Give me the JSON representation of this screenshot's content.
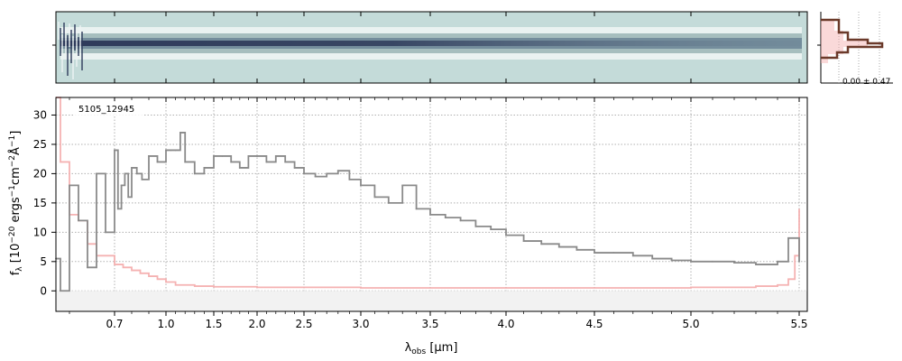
{
  "chart_data": [
    {
      "type": "heatmap",
      "panel": "2d-spectrum",
      "colormap": [
        "#c4dbd9",
        "#eef4f3",
        "#9fb8b8",
        "#6f8798",
        "#2e3a5a"
      ],
      "title": "",
      "xlabel": "",
      "ylabel": ""
    },
    {
      "type": "line",
      "panel": "spatial-profile",
      "annotation": "0.00 ± 0.47",
      "series": [
        {
          "role": "profile",
          "color": "#6b3a2a"
        },
        {
          "role": "model",
          "color": "#f4aaaa"
        }
      ]
    },
    {
      "type": "line",
      "panel": "1d-spectrum",
      "label": "5105_12945",
      "xlabel": "λobs [μm]",
      "ylabel": "fλ [10−20 ergs−1cm−2Å−1]",
      "x_scale": "nonlinear (spectral pixel)",
      "xlim": [
        0.57,
        5.53
      ],
      "ylim": [
        -3.5,
        33
      ],
      "xticks": [
        "0.7",
        "1.0",
        "1.5",
        "2.0",
        "2.5",
        "3.0",
        "3.5",
        "4.0",
        "4.5",
        "5.0",
        "5.5"
      ],
      "yticks": [
        "0",
        "5",
        "10",
        "15",
        "20",
        "25",
        "30"
      ],
      "grid": true,
      "series": [
        {
          "role": "flux",
          "color": "#8a8a8a",
          "x": [
            0.57,
            0.58,
            0.6,
            0.62,
            0.64,
            0.66,
            0.68,
            0.7,
            0.72,
            0.74,
            0.76,
            0.78,
            0.8,
            0.83,
            0.86,
            0.9,
            0.95,
            1.0,
            1.05,
            1.1,
            1.15,
            1.2,
            1.3,
            1.4,
            1.5,
            1.6,
            1.7,
            1.8,
            1.9,
            2.0,
            2.1,
            2.2,
            2.3,
            2.4,
            2.5,
            2.6,
            2.7,
            2.8,
            2.9,
            3.0,
            3.1,
            3.2,
            3.3,
            3.4,
            3.5,
            3.6,
            3.7,
            3.8,
            3.9,
            4.0,
            4.1,
            4.2,
            4.3,
            4.4,
            4.5,
            4.6,
            4.7,
            4.8,
            4.9,
            5.0,
            5.1,
            5.2,
            5.3,
            5.4,
            5.45,
            5.5
          ],
          "y": [
            5.5,
            0,
            18,
            12,
            4,
            20,
            10,
            24,
            14,
            18,
            20,
            16,
            21,
            20,
            19,
            23,
            22,
            24,
            24,
            24,
            27,
            22,
            20,
            21,
            23,
            23,
            22,
            21,
            23,
            23,
            22,
            23,
            22,
            21,
            20,
            19.5,
            20,
            20.5,
            19,
            18,
            16,
            15,
            18,
            14,
            13,
            12.5,
            12,
            11,
            10.5,
            9.5,
            8.5,
            8,
            7.5,
            7,
            6.5,
            6.5,
            6,
            5.5,
            5.2,
            5,
            5,
            4.8,
            4.5,
            5,
            9,
            5
          ]
        },
        {
          "role": "uncertainty",
          "color": "#f4aaaa",
          "x": [
            0.57,
            0.58,
            0.6,
            0.62,
            0.64,
            0.66,
            0.7,
            0.75,
            0.8,
            0.85,
            0.9,
            0.95,
            1.0,
            1.1,
            1.3,
            1.5,
            2.0,
            3.0,
            4.0,
            4.5,
            5.0,
            5.3,
            5.4,
            5.45,
            5.48,
            5.5
          ],
          "y": [
            33,
            22,
            13,
            12,
            8,
            6,
            4.5,
            4,
            3.5,
            3,
            2.5,
            2,
            1.5,
            1,
            0.8,
            0.7,
            0.6,
            0.5,
            0.5,
            0.5,
            0.6,
            0.8,
            1,
            2,
            6,
            14
          ]
        }
      ]
    }
  ]
}
